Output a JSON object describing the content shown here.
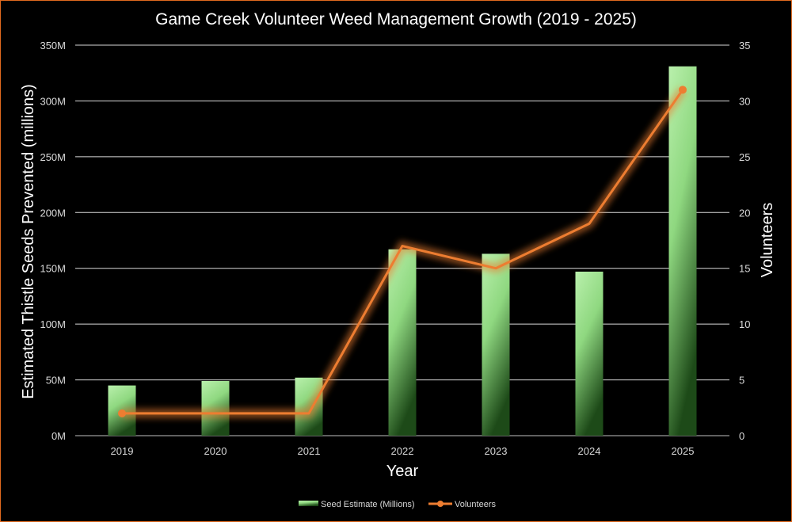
{
  "chart_data": {
    "type": "bar",
    "title": "Game Creek Volunteer Weed Management Growth (2019 - 2025)",
    "xlabel": "Year",
    "ylabel": "Estimated Thistle Seeds Prevented (millions)",
    "y2label": "Volunteers",
    "categories": [
      "2019",
      "2020",
      "2021",
      "2022",
      "2023",
      "2024",
      "2025"
    ],
    "ylim": [
      0,
      350
    ],
    "y2lim": [
      0,
      35
    ],
    "y_ticks": [
      "0M",
      "50M",
      "100M",
      "150M",
      "200M",
      "250M",
      "300M",
      "350M"
    ],
    "y2_ticks": [
      "0",
      "5",
      "10",
      "15",
      "20",
      "25",
      "30",
      "35"
    ],
    "grid": true,
    "legend_position": "bottom",
    "series": [
      {
        "name": "Seed Estimate (Millions)",
        "kind": "bar",
        "axis": "left",
        "color": "#9be38f",
        "values": [
          45,
          49,
          52,
          167,
          163,
          147,
          331
        ]
      },
      {
        "name": "Volunteers",
        "kind": "line",
        "axis": "right",
        "color": "#ed7d31",
        "values": [
          2,
          2,
          2,
          17,
          15,
          19,
          31
        ]
      }
    ]
  }
}
